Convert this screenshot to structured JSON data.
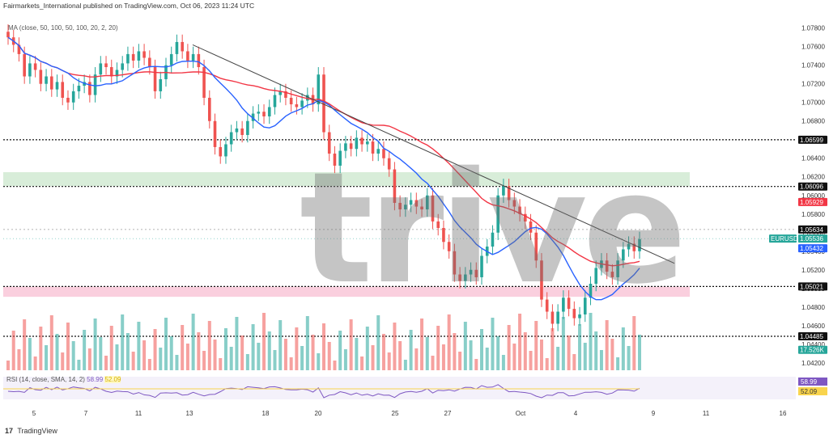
{
  "header": {
    "publisher_line": "Fairmarkets_International published on TradingView.com, Oct 06, 2023 11:24 UTC",
    "ma_label": "MA (close, 50, 100, 50, 100, 20, 2, 20)",
    "watermark": "trive",
    "footer": "TradingView",
    "footer_logo": "17"
  },
  "rsi": {
    "label": "RSI (14, close, SMA, 14, 2)",
    "value": "58.99",
    "sma_value": "52.09"
  },
  "colors": {
    "up": "#26a69a",
    "down": "#ef5350",
    "ma50": "#2962ff",
    "ma100": "#f23645",
    "rsi": "#7e57c2",
    "rsi_ma": "#f9d44d",
    "green_zone": "#c8e6c9",
    "red_zone": "#f8bbd0"
  },
  "chart_data": {
    "type": "candlestick",
    "symbol": "EURUSD",
    "y_ticks": [
      "1.07800",
      "1.07600",
      "1.07400",
      "1.07200",
      "1.07000",
      "1.06800",
      "1.06600",
      "1.06400",
      "1.06200",
      "1.06000",
      "1.05800",
      "1.05600",
      "1.05400",
      "1.05200",
      "1.05000",
      "1.04800",
      "1.04600",
      "1.04400",
      "1.04200"
    ],
    "x_ticks": [
      "5",
      "7",
      "11",
      "13",
      "18",
      "20",
      "25",
      "27",
      "Oct",
      "4",
      "9",
      "11",
      "16"
    ],
    "ylim": [
      1.0412,
      1.0798
    ],
    "price_tags": [
      {
        "label": "1.06599",
        "price": 1.06599
      },
      {
        "label": "1.06096",
        "price": 1.06096
      },
      {
        "label": "1.05929",
        "price": 1.05929
      },
      {
        "label": "1.05634",
        "price": 1.05634
      },
      {
        "label": "EURUSD",
        "price": 1.05536
      },
      {
        "label": "1.05536",
        "price": 1.05536
      },
      {
        "label": "1.05432",
        "price": 1.05432
      },
      {
        "label": "1.05021",
        "price": 1.05021
      },
      {
        "label": "1.04485",
        "price": 1.04485
      },
      {
        "label": "17.526K",
        "price": 1.0434
      }
    ],
    "rsi_tags": [
      "58.99",
      "52.09"
    ],
    "zones": [
      {
        "type": "resistance",
        "from": 1.061,
        "to": 1.0625
      },
      {
        "type": "support",
        "from": 1.0491,
        "to": 1.0502
      }
    ]
  }
}
